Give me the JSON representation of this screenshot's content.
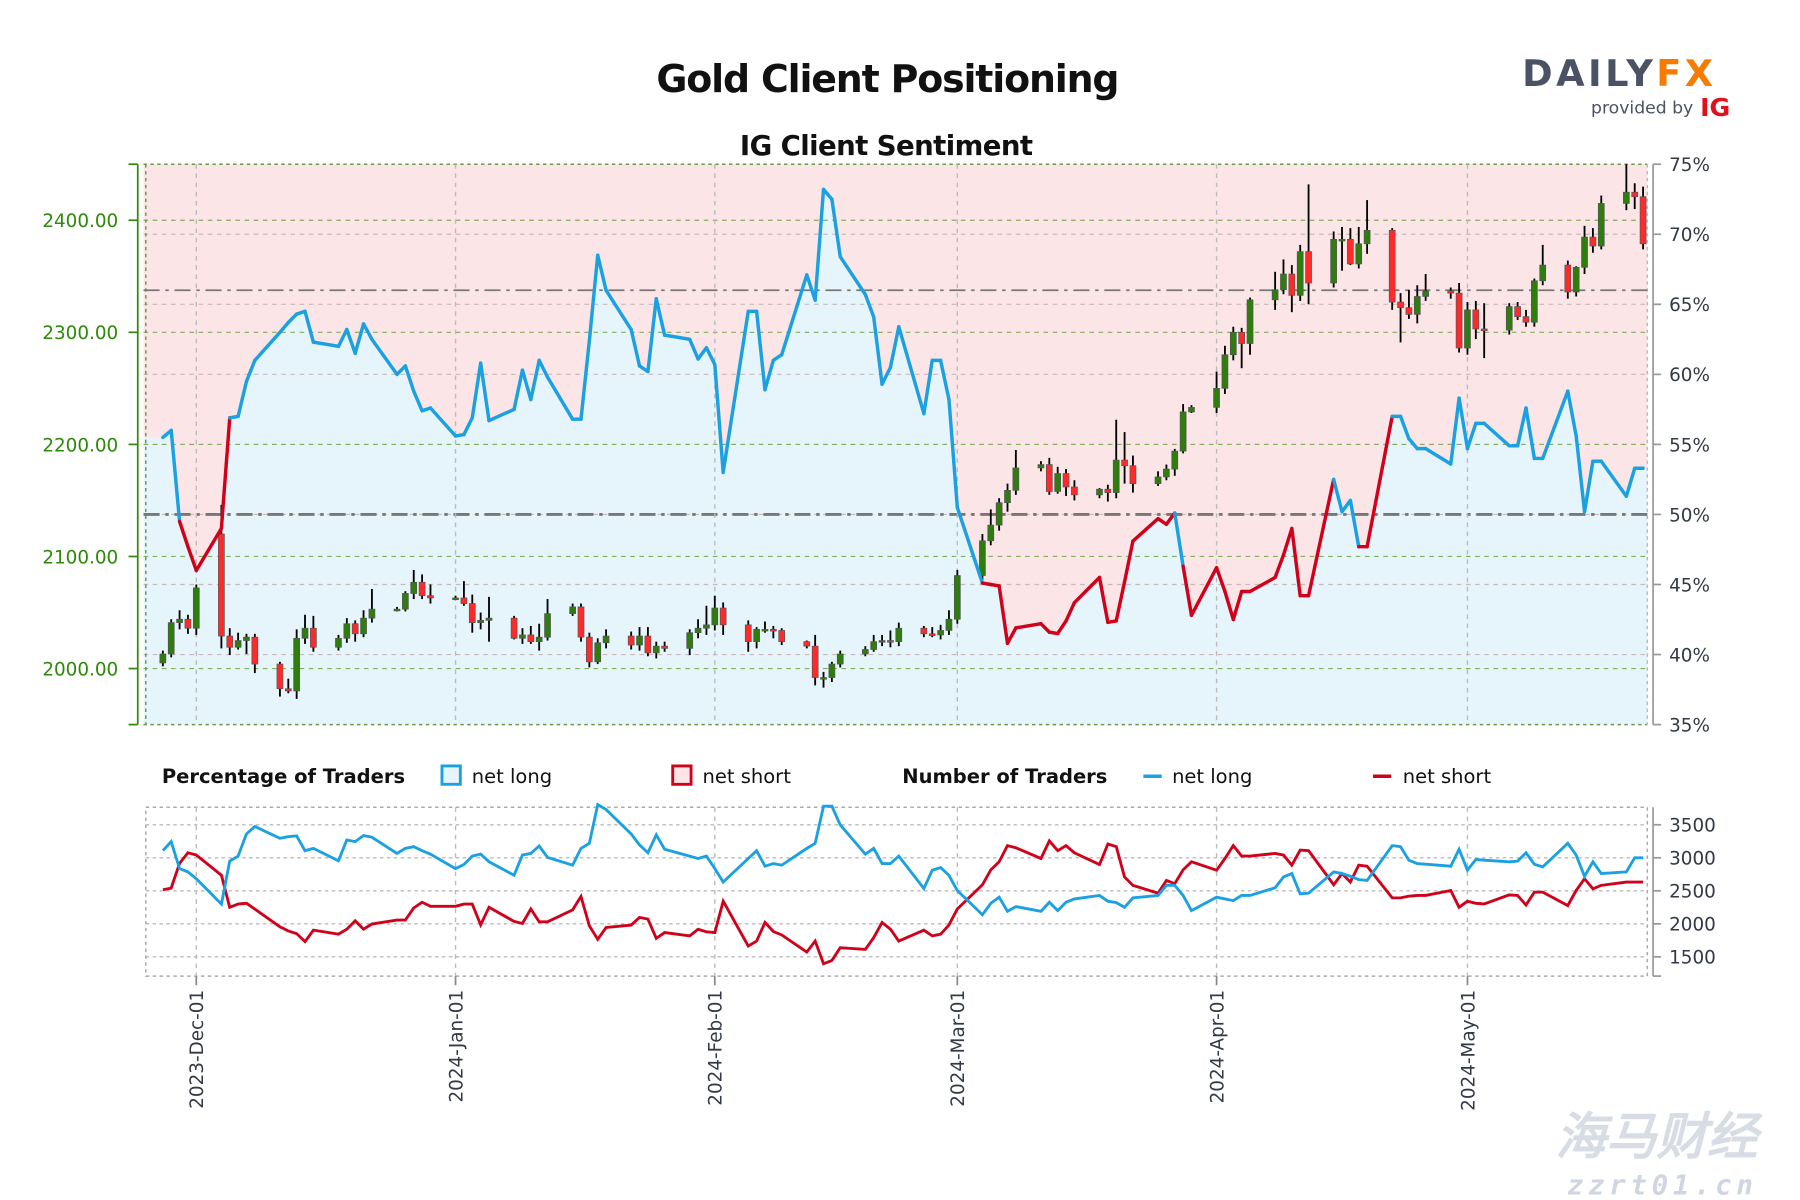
{
  "header": {
    "title": "Gold Client Positioning",
    "subtitle": "IG Client Sentiment"
  },
  "logo": {
    "brand_dark": "DAILY",
    "brand_accent": "FX",
    "tagline": "provided by",
    "partner": "IG"
  },
  "legend": {
    "pct_title": "Percentage of Traders",
    "pct_long": "net long",
    "pct_short": "net short",
    "num_title": "Number of Traders",
    "num_long": "net long",
    "num_short": "net short"
  },
  "watermark": {
    "text_cn": "海马财经",
    "text_url": "zzrt01.cn"
  },
  "colors": {
    "net_long": "#1ba1e2",
    "net_short": "#d0021b",
    "long_area": "#e6f4fc",
    "short_area": "#fbe5e6",
    "candle_up": "#2e7d0e",
    "candle_down": "#ff2a2a",
    "price_axis": "#2f8a0c",
    "logo_dark": "#4a5263",
    "logo_accent": "#f57c00"
  },
  "chart_data": {
    "type": "candlestick+line",
    "price_axis": {
      "side": "left",
      "range": [
        1950,
        2450
      ],
      "ticks": [
        "2000.00",
        "2100.00",
        "2200.00",
        "2300.00",
        "2400.00"
      ],
      "tick_values": [
        2000,
        2100,
        2200,
        2300,
        2400
      ]
    },
    "pct_axis": {
      "side": "right",
      "range": [
        35,
        75
      ],
      "ticks": [
        "35%",
        "40%",
        "45%",
        "50%",
        "55%",
        "60%",
        "65%",
        "70%",
        "75%"
      ],
      "tick_values": [
        35,
        40,
        45,
        50,
        55,
        60,
        65,
        70,
        75
      ]
    },
    "reference_lines_pct": [
      50,
      66
    ],
    "traders_axis": {
      "side": "right",
      "range": [
        1250,
        3750
      ],
      "ticks": [
        "1500",
        "2000",
        "2500",
        "3000",
        "3500"
      ],
      "tick_values": [
        1500,
        2000,
        2500,
        3000,
        3500
      ]
    },
    "x_ticks": [
      {
        "date": "2023-12-01",
        "label": "2023-Dec-01"
      },
      {
        "date": "2024-01-01",
        "label": "2024-Jan-01"
      },
      {
        "date": "2024-02-01",
        "label": "2024-Feb-01"
      },
      {
        "date": "2024-03-01",
        "label": "2024-Mar-01"
      },
      {
        "date": "2024-04-01",
        "label": "2024-Apr-01"
      },
      {
        "date": "2024-05-01",
        "label": "2024-May-01"
      }
    ],
    "grid": true,
    "dates": [
      "2023-11-27",
      "2023-11-28",
      "2023-11-29",
      "2023-11-30",
      "2023-12-01",
      "2023-12-04",
      "2023-12-05",
      "2023-12-06",
      "2023-12-07",
      "2023-12-08",
      "2023-12-11",
      "2023-12-12",
      "2023-12-13",
      "2023-12-14",
      "2023-12-15",
      "2023-12-18",
      "2023-12-19",
      "2023-12-20",
      "2023-12-21",
      "2023-12-22",
      "2023-12-25",
      "2023-12-26",
      "2023-12-27",
      "2023-12-28",
      "2023-12-29",
      "2024-01-01",
      "2024-01-02",
      "2024-01-03",
      "2024-01-04",
      "2024-01-05",
      "2024-01-08",
      "2024-01-09",
      "2024-01-10",
      "2024-01-11",
      "2024-01-12",
      "2024-01-15",
      "2024-01-16",
      "2024-01-17",
      "2024-01-18",
      "2024-01-19",
      "2024-01-22",
      "2024-01-23",
      "2024-01-24",
      "2024-01-25",
      "2024-01-26",
      "2024-01-29",
      "2024-01-30",
      "2024-01-31",
      "2024-02-01",
      "2024-02-02",
      "2024-02-05",
      "2024-02-06",
      "2024-02-07",
      "2024-02-08",
      "2024-02-09",
      "2024-02-12",
      "2024-02-13",
      "2024-02-14",
      "2024-02-15",
      "2024-02-16",
      "2024-02-19",
      "2024-02-20",
      "2024-02-21",
      "2024-02-22",
      "2024-02-23",
      "2024-02-26",
      "2024-02-27",
      "2024-02-28",
      "2024-02-29",
      "2024-03-01",
      "2024-03-04",
      "2024-03-05",
      "2024-03-06",
      "2024-03-07",
      "2024-03-08",
      "2024-03-11",
      "2024-03-12",
      "2024-03-13",
      "2024-03-14",
      "2024-03-15",
      "2024-03-18",
      "2024-03-19",
      "2024-03-20",
      "2024-03-21",
      "2024-03-22",
      "2024-03-25",
      "2024-03-26",
      "2024-03-27",
      "2024-03-28",
      "2024-03-29",
      "2024-04-01",
      "2024-04-02",
      "2024-04-03",
      "2024-04-04",
      "2024-04-05",
      "2024-04-08",
      "2024-04-09",
      "2024-04-10",
      "2024-04-11",
      "2024-04-12",
      "2024-04-15",
      "2024-04-16",
      "2024-04-17",
      "2024-04-18",
      "2024-04-19",
      "2024-04-22",
      "2024-04-23",
      "2024-04-24",
      "2024-04-25",
      "2024-04-26",
      "2024-04-29",
      "2024-04-30",
      "2024-05-01",
      "2024-05-02",
      "2024-05-03",
      "2024-05-06",
      "2024-05-07",
      "2024-05-08",
      "2024-05-09",
      "2024-05-10",
      "2024-05-13",
      "2024-05-14",
      "2024-05-15",
      "2024-05-16",
      "2024-05-17",
      "2024-05-20",
      "2024-05-21",
      "2024-05-22"
    ],
    "price_ohlc": [
      [
        2005,
        2016,
        2002,
        2013
      ],
      [
        2013,
        2044,
        2010,
        2041
      ],
      [
        2041,
        2052,
        2035,
        2044
      ],
      [
        2044,
        2048,
        2031,
        2036
      ],
      [
        2036,
        2075,
        2030,
        2072
      ],
      [
        2120,
        2146,
        2018,
        2029
      ],
      [
        2029,
        2036,
        2012,
        2019
      ],
      [
        2019,
        2032,
        2017,
        2025
      ],
      [
        2025,
        2031,
        2013,
        2028
      ],
      [
        2028,
        2031,
        1996,
        2004
      ],
      [
        2004,
        2006,
        1975,
        1982
      ],
      [
        1982,
        1991,
        1978,
        1980
      ],
      [
        1980,
        2035,
        1973,
        2027
      ],
      [
        2027,
        2048,
        2022,
        2036
      ],
      [
        2036,
        2047,
        2015,
        2019
      ],
      [
        2019,
        2030,
        2016,
        2027
      ],
      [
        2027,
        2045,
        2023,
        2040
      ],
      [
        2040,
        2043,
        2024,
        2031
      ],
      [
        2031,
        2052,
        2028,
        2045
      ],
      [
        2045,
        2071,
        2041,
        2053
      ],
      [
        2053,
        2055,
        2051,
        2053
      ],
      [
        2053,
        2069,
        2051,
        2067
      ],
      [
        2067,
        2088,
        2062,
        2077
      ],
      [
        2077,
        2084,
        2062,
        2065
      ],
      [
        2065,
        2075,
        2058,
        2063
      ],
      [
        2063,
        2065,
        2061,
        2063
      ],
      [
        2063,
        2078,
        2056,
        2058
      ],
      [
        2058,
        2066,
        2032,
        2041
      ],
      [
        2041,
        2050,
        2035,
        2043
      ],
      [
        2043,
        2064,
        2024,
        2045
      ],
      [
        2045,
        2047,
        2026,
        2027
      ],
      [
        2027,
        2036,
        2022,
        2030
      ],
      [
        2030,
        2038,
        2022,
        2024
      ],
      [
        2024,
        2040,
        2016,
        2028
      ],
      [
        2028,
        2062,
        2025,
        2049
      ],
      [
        2049,
        2058,
        2047,
        2055
      ],
      [
        2055,
        2058,
        2024,
        2028
      ],
      [
        2028,
        2032,
        2001,
        2006
      ],
      [
        2006,
        2027,
        2004,
        2023
      ],
      [
        2023,
        2035,
        2018,
        2029
      ],
      [
        2029,
        2033,
        2017,
        2021
      ],
      [
        2021,
        2037,
        2016,
        2029
      ],
      [
        2029,
        2037,
        2011,
        2014
      ],
      [
        2014,
        2024,
        2009,
        2020
      ],
      [
        2020,
        2024,
        2015,
        2018
      ],
      [
        2018,
        2035,
        2012,
        2032
      ],
      [
        2032,
        2044,
        2027,
        2036
      ],
      [
        2036,
        2056,
        2030,
        2039
      ],
      [
        2039,
        2065,
        2034,
        2054
      ],
      [
        2054,
        2059,
        2030,
        2039
      ],
      [
        2039,
        2043,
        2015,
        2024
      ],
      [
        2024,
        2037,
        2018,
        2035
      ],
      [
        2035,
        2042,
        2032,
        2035
      ],
      [
        2035,
        2038,
        2027,
        2034
      ],
      [
        2034,
        2036,
        2021,
        2024
      ],
      [
        2024,
        2025,
        2018,
        2020
      ],
      [
        2020,
        2030,
        1985,
        1992
      ],
      [
        1992,
        1997,
        1983,
        1992
      ],
      [
        1992,
        2006,
        1988,
        2004
      ],
      [
        2004,
        2016,
        2001,
        2013
      ],
      [
        2013,
        2020,
        2011,
        2017
      ],
      [
        2017,
        2030,
        2015,
        2024
      ],
      [
        2024,
        2030,
        2020,
        2025
      ],
      [
        2025,
        2034,
        2019,
        2024
      ],
      [
        2024,
        2041,
        2020,
        2036
      ],
      [
        2036,
        2038,
        2028,
        2031
      ],
      [
        2031,
        2037,
        2028,
        2030
      ],
      [
        2030,
        2039,
        2026,
        2034
      ],
      [
        2034,
        2052,
        2030,
        2044
      ],
      [
        2044,
        2088,
        2040,
        2083
      ],
      [
        2083,
        2120,
        2079,
        2114
      ],
      [
        2114,
        2142,
        2110,
        2128
      ],
      [
        2128,
        2152,
        2123,
        2148
      ],
      [
        2148,
        2165,
        2140,
        2159
      ],
      [
        2159,
        2195,
        2155,
        2179
      ],
      [
        2179,
        2185,
        2176,
        2182
      ],
      [
        2182,
        2188,
        2155,
        2158
      ],
      [
        2158,
        2180,
        2156,
        2174
      ],
      [
        2174,
        2178,
        2154,
        2162
      ],
      [
        2162,
        2168,
        2150,
        2155
      ],
      [
        2155,
        2161,
        2152,
        2160
      ],
      [
        2160,
        2164,
        2149,
        2157
      ],
      [
        2157,
        2222,
        2152,
        2186
      ],
      [
        2186,
        2211,
        2165,
        2181
      ],
      [
        2181,
        2190,
        2157,
        2165
      ],
      [
        2165,
        2176,
        2163,
        2171
      ],
      [
        2171,
        2182,
        2168,
        2178
      ],
      [
        2178,
        2196,
        2172,
        2194
      ],
      [
        2194,
        2236,
        2192,
        2229
      ],
      [
        2229,
        2235,
        2228,
        2233
      ],
      [
        2233,
        2265,
        2228,
        2250
      ],
      [
        2250,
        2288,
        2245,
        2280
      ],
      [
        2280,
        2305,
        2275,
        2300
      ],
      [
        2300,
        2304,
        2268,
        2290
      ],
      [
        2290,
        2331,
        2280,
        2329
      ],
      [
        2329,
        2354,
        2320,
        2338
      ],
      [
        2338,
        2365,
        2334,
        2352
      ],
      [
        2352,
        2360,
        2318,
        2333
      ],
      [
        2333,
        2378,
        2328,
        2372
      ],
      [
        2372,
        2432,
        2325,
        2344
      ],
      [
        2344,
        2390,
        2340,
        2383
      ],
      [
        2383,
        2394,
        2355,
        2383
      ],
      [
        2383,
        2393,
        2360,
        2361
      ],
      [
        2361,
        2394,
        2357,
        2379
      ],
      [
        2379,
        2418,
        2370,
        2391
      ],
      [
        2391,
        2393,
        2320,
        2327
      ],
      [
        2327,
        2335,
        2291,
        2322
      ],
      [
        2322,
        2338,
        2312,
        2316
      ],
      [
        2316,
        2342,
        2308,
        2332
      ],
      [
        2332,
        2352,
        2328,
        2337
      ],
      [
        2337,
        2340,
        2330,
        2335
      ],
      [
        2335,
        2344,
        2282,
        2286
      ],
      [
        2286,
        2327,
        2280,
        2320
      ],
      [
        2320,
        2328,
        2294,
        2303
      ],
      [
        2303,
        2326,
        2277,
        2302
      ],
      [
        2302,
        2326,
        2298,
        2323
      ],
      [
        2323,
        2327,
        2311,
        2314
      ],
      [
        2314,
        2320,
        2305,
        2309
      ],
      [
        2309,
        2348,
        2305,
        2346
      ],
      [
        2346,
        2378,
        2342,
        2360
      ],
      [
        2360,
        2364,
        2330,
        2336
      ],
      [
        2336,
        2359,
        2332,
        2358
      ],
      [
        2358,
        2395,
        2352,
        2385
      ],
      [
        2385,
        2393,
        2371,
        2377
      ],
      [
        2377,
        2422,
        2374,
        2415
      ],
      [
        2415,
        2450,
        2409,
        2425
      ],
      [
        2425,
        2433,
        2410,
        2421
      ],
      [
        2421,
        2430,
        2374,
        2379
      ]
    ],
    "net_long_pct": [
      55.5,
      56,
      49.5,
      47.7,
      46,
      49,
      56.9,
      57,
      59.5,
      61,
      63,
      63.7,
      64.3,
      64.5,
      62.3,
      62,
      63.2,
      61.5,
      63.6,
      62.5,
      60,
      60.6,
      58.8,
      57.4,
      57.6,
      55.6,
      55.7,
      56.9,
      60.8,
      56.7,
      57.5,
      60.3,
      58.2,
      61,
      59.8,
      56.8,
      56.8,
      62.4,
      68.5,
      66,
      63.2,
      60.6,
      60.2,
      65.4,
      62.8,
      62.5,
      61.1,
      61.9,
      60.7,
      53,
      64.5,
      64.5,
      58.9,
      61,
      61.4,
      67.1,
      65.3,
      73.2,
      72.5,
      68.4,
      65.7,
      64.1,
      59.3,
      60.5,
      63.4,
      57.2,
      61,
      61,
      58.2,
      50.5,
      45.1,
      45,
      44.9,
      40.8,
      41.9,
      42.2,
      41.6,
      41.5,
      42.4,
      43.7,
      45.5,
      42.3,
      42.4,
      45.2,
      48.1,
      49.7,
      49.3,
      50.1,
      46.3,
      42.8,
      46.2,
      44.5,
      42.5,
      44.5,
      44.5,
      45.5,
      47.1,
      49,
      44.2,
      44.2,
      52.5,
      50.2,
      51,
      47.7,
      47.7,
      57,
      57,
      55.4,
      54.7,
      54.7,
      53.6,
      58.3,
      54.7,
      56.5,
      56.5,
      54.9,
      54.9,
      57.6,
      54,
      54,
      58.8,
      55.6,
      50.2,
      53.8,
      53.8,
      51.3,
      53.3,
      53.3
    ],
    "traders_net_long": [
      3110,
      3245,
      2837,
      2786,
      2684,
      2300,
      2950,
      3026,
      3362,
      3475,
      3296,
      3320,
      3332,
      3107,
      3143,
      2954,
      3270,
      3245,
      3337,
      3311,
      3066,
      3143,
      3168,
      3107,
      3056,
      2837,
      2898,
      3026,
      3056,
      2939,
      2735,
      3041,
      3066,
      3179,
      3005,
      2888,
      3143,
      3220,
      3806,
      3730,
      3362,
      3194,
      3077,
      3347,
      3128,
      3026,
      2990,
      3026,
      2837,
      2633,
      2990,
      3107,
      2873,
      2913,
      2888,
      3143,
      3220,
      3780,
      3780,
      3500,
      3056,
      3143,
      2913,
      2913,
      3026,
      2536,
      2812,
      2852,
      2735,
      2505,
      2138,
      2312,
      2404,
      2190,
      2261,
      2190,
      2327,
      2200,
      2327,
      2378,
      2429,
      2342,
      2322,
      2250,
      2393,
      2429,
      2582,
      2582,
      2429,
      2200,
      2404,
      2378,
      2352,
      2429,
      2429,
      2546,
      2710,
      2761,
      2454,
      2464,
      2786,
      2761,
      2720,
      2669,
      2658,
      3184,
      3168,
      2964,
      2913,
      2903,
      2873,
      3128,
      2812,
      2974,
      2964,
      2939,
      2949,
      3077,
      2903,
      2862,
      3220,
      3041,
      2720,
      2939,
      2761,
      2786,
      3000,
      3000
    ],
    "traders_net_short": [
      2516,
      2541,
      2914,
      3077,
      3041,
      2735,
      2250,
      2300,
      2312,
      2225,
      1955,
      1893,
      1853,
      1730,
      1904,
      1843,
      1919,
      2046,
      1919,
      1996,
      2057,
      2057,
      2240,
      2327,
      2266,
      2266,
      2300,
      2300,
      1985,
      2250,
      2036,
      2006,
      2225,
      2031,
      2031,
      2210,
      2414,
      1970,
      1766,
      1945,
      1980,
      2097,
      2072,
      1781,
      1868,
      1817,
      1919,
      1878,
      1868,
      2342,
      1664,
      1740,
      2021,
      1883,
      1832,
      1572,
      1740,
      1394,
      1445,
      1638,
      1613,
      1792,
      2021,
      1919,
      1740,
      1904,
      1817,
      1843,
      1980,
      2225,
      2592,
      2817,
      2939,
      3184,
      3153,
      2990,
      3255,
      3107,
      3184,
      3077,
      2898,
      3209,
      3168,
      2710,
      2582,
      2465,
      2658,
      2607,
      2817,
      2939,
      2812,
      2990,
      3184,
      3026,
      3026,
      3066,
      3041,
      2888,
      3117,
      3107,
      2592,
      2761,
      2633,
      2888,
      2873,
      2393,
      2393,
      2419,
      2429,
      2429,
      2505,
      2250,
      2342,
      2312,
      2301,
      2439,
      2429,
      2286,
      2480,
      2480,
      2276,
      2505,
      2684,
      2531,
      2582,
      2633,
      2633,
      2633
    ]
  }
}
